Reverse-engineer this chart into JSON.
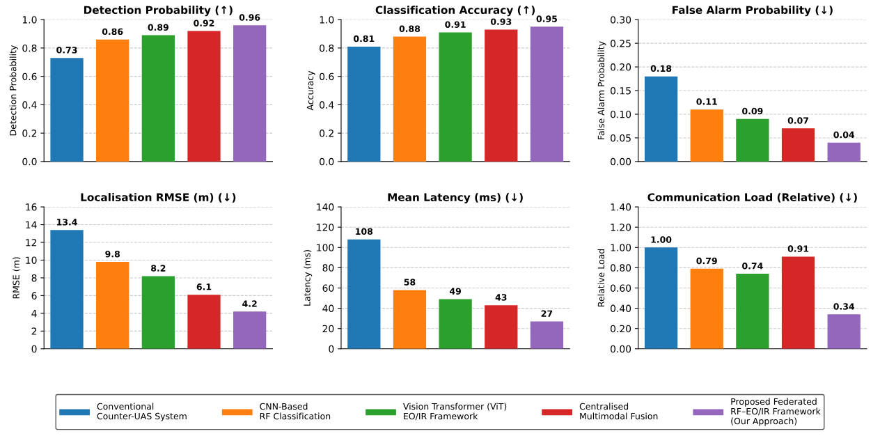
{
  "chart_data": [
    {
      "type": "bar",
      "title": "Detection Probability (↑)",
      "ylabel": "Detection Probability",
      "categories": [
        null,
        null,
        null,
        null,
        null
      ],
      "legend": "bottom",
      "grid": "y",
      "data_labels": true,
      "ylim": [
        0,
        1.0
      ],
      "yticks": [
        {
          "value": 0,
          "label": "0.0"
        },
        0.2,
        0.4,
        0.6,
        0.8,
        {
          "value": 1.0,
          "label": "1.0"
        }
      ],
      "series": [
        {
          "name": "Conventional\nCounter-UAS System",
          "color": "#1f77b4",
          "values": [
            0.73,
            null,
            null,
            null,
            null
          ]
        },
        {
          "name": "CNN-Based\nRF Classification",
          "color": "#ff7f0e",
          "values": [
            null,
            0.86,
            null,
            null,
            null
          ]
        },
        {
          "name": "Vision Transformer (ViT)\nEO/IR Framework",
          "color": "#2ca02c",
          "values": [
            null,
            null,
            0.89,
            null,
            null
          ]
        },
        {
          "name": "Centralised\nMultimodal Fusion",
          "color": "#d62728",
          "values": [
            null,
            null,
            null,
            0.92,
            null
          ]
        },
        {
          "name": "Proposed Federated\nRF–EO/IR Framework\n(Our Approach)",
          "color": "#9467bd",
          "values": [
            null,
            null,
            null,
            null,
            0.96
          ]
        }
      ]
    },
    {
      "type": "bar",
      "title": "Classification Accuracy (↑)",
      "ylabel": "Accuracy",
      "categories": [
        null,
        null,
        null,
        null,
        null
      ],
      "grid": "y",
      "data_labels": true,
      "ylim": [
        0,
        1.0
      ],
      "yticks": [
        {
          "value": 0,
          "label": "0.0"
        },
        0.2,
        0.4,
        0.6,
        0.8,
        {
          "value": 1.0,
          "label": "1.0"
        }
      ],
      "series": [
        {
          "color": "#1f77b4",
          "values": [
            0.81,
            null,
            null,
            null,
            null
          ]
        },
        {
          "color": "#ff7f0e",
          "values": [
            null,
            0.88,
            null,
            null,
            null
          ]
        },
        {
          "color": "#2ca02c",
          "values": [
            null,
            null,
            0.91,
            null,
            null
          ]
        },
        {
          "color": "#d62728",
          "values": [
            null,
            null,
            null,
            0.93,
            null
          ]
        },
        {
          "color": "#9467bd",
          "values": [
            null,
            null,
            null,
            null,
            0.95
          ]
        }
      ]
    },
    {
      "type": "bar",
      "title": "False Alarm Probability (↓)",
      "ylabel": "False Alarm Probability",
      "categories": [
        null,
        null,
        null,
        null,
        null
      ],
      "grid": "y",
      "data_labels": true,
      "ylim": [
        0,
        0.3
      ],
      "yticks": [
        {
          "value": 0,
          "label": "0.00"
        },
        {
          "value": 0.05,
          "label": "0.05"
        },
        {
          "value": 0.1,
          "label": "0.10"
        },
        {
          "value": 0.15,
          "label": "0.15"
        },
        {
          "value": 0.2,
          "label": "0.20"
        },
        {
          "value": 0.25,
          "label": "0.25"
        },
        {
          "value": 0.3,
          "label": "0.30"
        }
      ],
      "series": [
        {
          "color": "#1f77b4",
          "values": [
            0.18,
            null,
            null,
            null,
            null
          ]
        },
        {
          "color": "#ff7f0e",
          "values": [
            null,
            0.11,
            null,
            null,
            null
          ]
        },
        {
          "color": "#2ca02c",
          "values": [
            null,
            null,
            0.09,
            null,
            null
          ]
        },
        {
          "color": "#d62728",
          "values": [
            null,
            null,
            null,
            0.07,
            null
          ]
        },
        {
          "color": "#9467bd",
          "values": [
            null,
            null,
            null,
            null,
            0.04
          ]
        }
      ]
    },
    {
      "type": "bar",
      "title": "Localisation RMSE (m) (↓)",
      "ylabel": "RMSE (m)",
      "categories": [
        null,
        null,
        null,
        null,
        null
      ],
      "grid": "y",
      "data_labels": true,
      "ylim": [
        0,
        16
      ],
      "yticks": [
        0,
        2,
        4,
        6,
        8,
        10,
        12,
        14,
        16
      ],
      "series": [
        {
          "color": "#1f77b4",
          "values": [
            13.4,
            null,
            null,
            null,
            null
          ]
        },
        {
          "color": "#ff7f0e",
          "values": [
            null,
            9.8,
            null,
            null,
            null
          ]
        },
        {
          "color": "#2ca02c",
          "values": [
            null,
            null,
            8.2,
            null,
            null
          ]
        },
        {
          "color": "#d62728",
          "values": [
            null,
            null,
            null,
            6.1,
            null
          ]
        },
        {
          "color": "#9467bd",
          "values": [
            null,
            null,
            null,
            null,
            4.2
          ]
        }
      ]
    },
    {
      "type": "bar",
      "title": "Mean Latency (ms) (↓)",
      "ylabel": "Latency (ms)",
      "categories": [
        null,
        null,
        null,
        null,
        null
      ],
      "grid": "y",
      "data_labels": true,
      "ylim": [
        0,
        140
      ],
      "yticks": [
        0,
        20,
        40,
        60,
        80,
        100,
        120,
        140
      ],
      "series": [
        {
          "color": "#1f77b4",
          "values": [
            108,
            null,
            null,
            null,
            null
          ]
        },
        {
          "color": "#ff7f0e",
          "values": [
            null,
            58,
            null,
            null,
            null
          ]
        },
        {
          "color": "#2ca02c",
          "values": [
            null,
            null,
            49,
            null,
            null
          ]
        },
        {
          "color": "#d62728",
          "values": [
            null,
            null,
            null,
            43,
            null
          ]
        },
        {
          "color": "#9467bd",
          "values": [
            null,
            null,
            null,
            null,
            27
          ]
        }
      ]
    },
    {
      "type": "bar",
      "title": "Communication Load (Relative) (↓)",
      "ylabel": "Relative Load",
      "categories": [
        null,
        null,
        null,
        null,
        null
      ],
      "grid": "y",
      "ylim": [
        0,
        1.4
      ],
      "yticks": [
        {
          "value": 0,
          "label": "0.00"
        },
        {
          "value": 0.2,
          "label": "0.20"
        },
        {
          "value": 0.4,
          "label": "0.40"
        },
        {
          "value": 0.6,
          "label": "0.60"
        },
        {
          "value": 0.8,
          "label": "0.80"
        },
        {
          "value": 1.0,
          "label": "1.00"
        },
        {
          "value": 1.2,
          "label": "1.20"
        },
        {
          "value": 1.4,
          "label": "1.40"
        }
      ],
      "values": [
        1.0,
        0.79,
        0.74,
        0.91,
        0.34
      ],
      "value_labels": [
        "1.00",
        "0.79",
        "0.74",
        "0.91",
        "0.34"
      ],
      "colors": [
        "#1f77b4",
        "#ff7f0e",
        "#2ca02c",
        "#d62728",
        "#9467bd"
      ]
    }
  ]
}
